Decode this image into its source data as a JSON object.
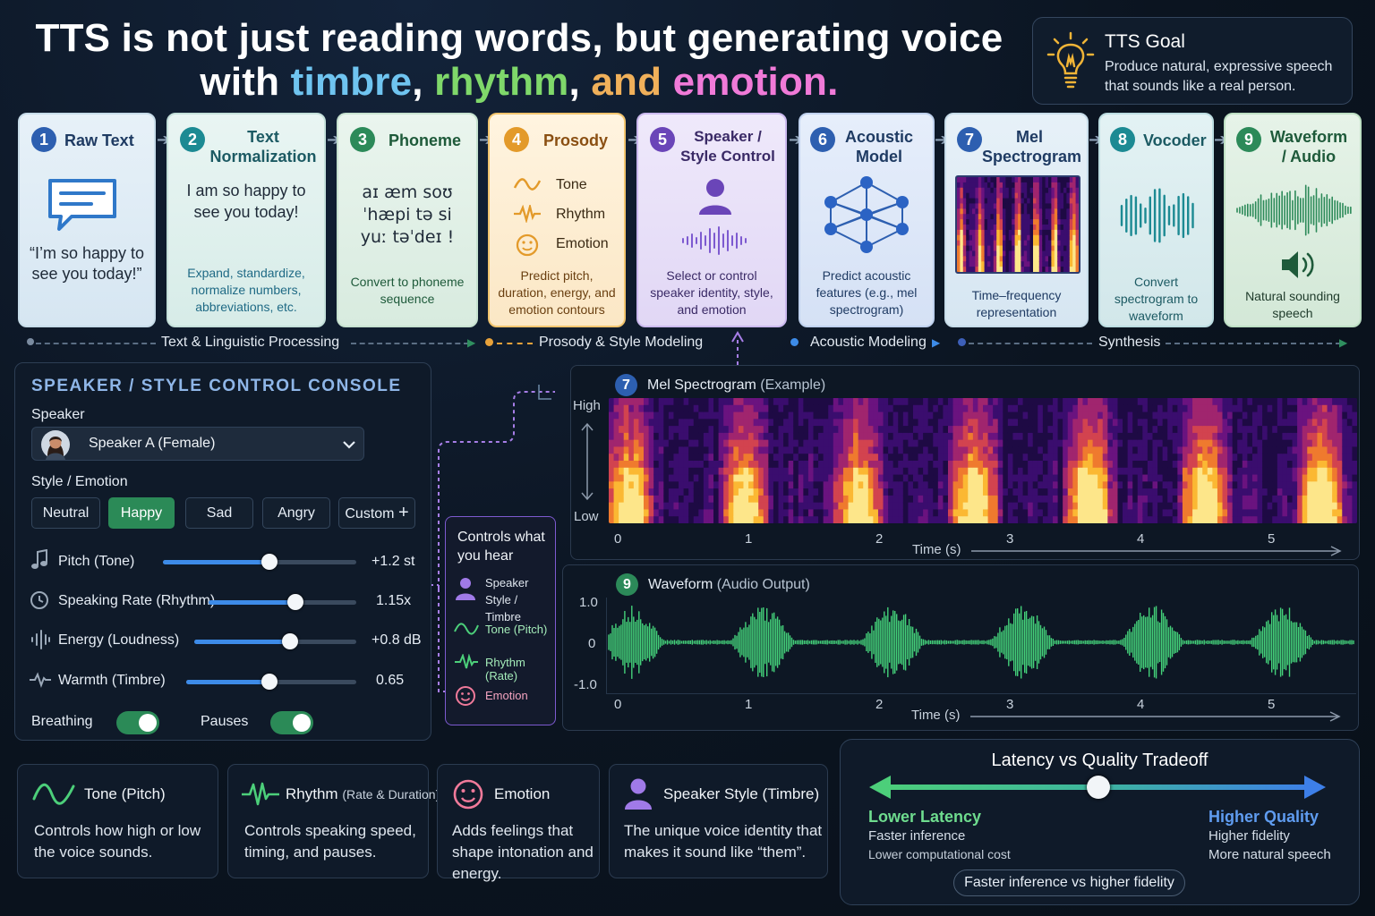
{
  "headline": {
    "line1": "TTS is not just reading words, but generating voice",
    "line2_pre": "with ",
    "w_timbre": "timbre",
    "comma1": ",",
    "w_rhythm": "rhythm",
    "comma2": ",",
    "w_and": "and",
    "w_emotion": "emotion",
    "period": "."
  },
  "goal": {
    "title": "TTS Goal",
    "text": "Produce natural, expressive speech that sounds like a real person."
  },
  "pipeline": [
    {
      "num": "1",
      "title": "Raw Text",
      "quote": "“I’m so happy to see you today!”"
    },
    {
      "num": "2",
      "title": "Text Normalization",
      "body": "I am so happy to see you today!",
      "desc": "Expand, standardize, normalize numbers, abbreviations, etc."
    },
    {
      "num": "3",
      "title": "Phoneme",
      "body1": "aɪ æm soʊ",
      "body2": "ˈhæpi tə si",
      "body3": "yuː təˈdeɪ !",
      "desc": "Convert to phoneme sequence"
    },
    {
      "num": "4",
      "title": "Prosody",
      "items": [
        "Tone",
        "Rhythm",
        "Emotion"
      ],
      "desc": "Predict pitch, duration, energy, and emotion contours"
    },
    {
      "num": "5",
      "title": "Speaker / Style Control",
      "desc": "Select or control speaker identity, style, and emotion"
    },
    {
      "num": "6",
      "title": "Acoustic Model",
      "desc": "Predict acoustic features (e.g., mel spectrogram)"
    },
    {
      "num": "7",
      "title": "Mel Spectrogram",
      "desc": "Time–frequency representation"
    },
    {
      "num": "8",
      "title": "Vocoder",
      "desc": "Convert spectrogram to waveform"
    },
    {
      "num": "9",
      "title": "Waveform / Audio",
      "desc": "Natural sounding speech"
    }
  ],
  "stages": [
    "Text & Linguistic Processing",
    "Prosody & Style Modeling",
    "Acoustic Modeling",
    "Synthesis"
  ],
  "console": {
    "title": "SPEAKER / STYLE CONTROL CONSOLE",
    "speaker_label": "Speaker",
    "speaker_value": "Speaker A (Female)",
    "style_label": "Style / Emotion",
    "styles": [
      "Neutral",
      "Happy",
      "Sad",
      "Angry",
      "Custom"
    ],
    "selected_style": "Happy",
    "sliders": [
      {
        "label": "Pitch (Tone)",
        "value": "+1.2 st",
        "level": 0.55
      },
      {
        "label": "Speaking Rate (Rhythm)",
        "value": "1.15x",
        "level": 0.59
      },
      {
        "label": "Energy (Loudness)",
        "value": "+0.8 dB",
        "level": 0.59
      },
      {
        "label": "Warmth (Timbre)",
        "value": "0.65",
        "level": 0.49
      }
    ],
    "toggles": [
      {
        "label": "Breathing",
        "on": true
      },
      {
        "label": "Pauses",
        "on": true
      }
    ]
  },
  "controls_box": {
    "title": "Controls what you hear",
    "items": [
      "Speaker Style / Timbre",
      "Tone (Pitch)",
      "Rhythm (Rate)",
      "Emotion"
    ]
  },
  "mel_panel": {
    "num": "7",
    "title": "Mel Spectrogram",
    "subtitle": "(Example)",
    "y_high": "High",
    "y_low": "Low",
    "x_ticks": [
      "0",
      "1",
      "2",
      "3",
      "4",
      "5"
    ],
    "x_label": "Time (s)"
  },
  "wave_panel": {
    "num": "9",
    "title": "Waveform",
    "subtitle": "(Audio Output)",
    "y_ticks": [
      "1.0",
      "0",
      "-1.0"
    ],
    "x_ticks": [
      "0",
      "1",
      "2",
      "3",
      "4",
      "5"
    ],
    "x_label": "Time (s)"
  },
  "bottom_cards": [
    {
      "title": "Tone (Pitch)",
      "title_small": "",
      "desc": "Controls how high or low the voice sounds."
    },
    {
      "title": "Rhythm",
      "title_small": "(Rate & Duration)",
      "desc": "Controls speaking speed, timing, and pauses."
    },
    {
      "title": "Emotion",
      "title_small": "",
      "desc": "Adds feelings that shape intonation and energy."
    },
    {
      "title": "Speaker Style (Timbre)",
      "title_small": "",
      "desc": "The unique voice identity that makes it sound like “them”."
    }
  ],
  "tradeoff": {
    "title": "Latency vs Quality Tradeoff",
    "left_title": "Lower Latency",
    "left_1": "Faster inference",
    "left_2": "Lower computational cost",
    "right_title": "Higher Quality",
    "right_1": "Higher fidelity",
    "right_2": "More natural speech",
    "pill": "Faster inference vs higher fidelity",
    "position": 0.5
  },
  "colors": {
    "accent_blue": "#3d8be8",
    "accent_green": "#2b8a57",
    "accent_purple": "#7d5ad0",
    "prosody_orange": "#e8a23a"
  }
}
